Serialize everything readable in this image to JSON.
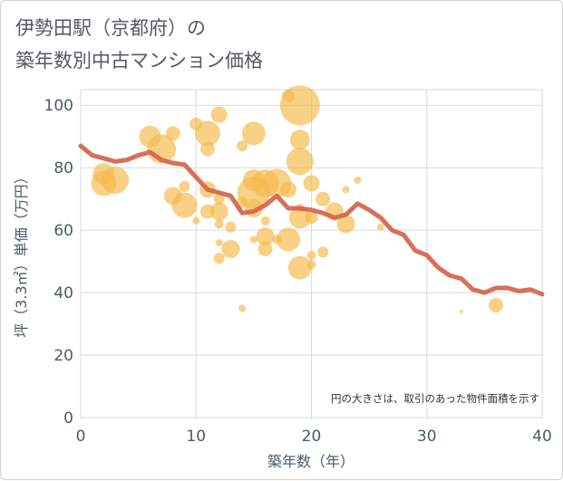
{
  "chart_data": {
    "type": "scatter",
    "title": "伊勢田駅（京都府）の\n築年数別中古マンション価格",
    "xlabel": "築年数（年）",
    "ylabel": "坪（3.3㎡）単価（万円）",
    "xlim": [
      0,
      40
    ],
    "ylim": [
      0,
      105
    ],
    "x_ticks": [
      0,
      10,
      20,
      30,
      40
    ],
    "y_ticks": [
      0,
      20,
      40,
      60,
      80,
      100
    ],
    "grid": true,
    "annotation": "円の大きさは、取引のあった物件面積を示す",
    "colors": {
      "bubble": "#f5b94d",
      "line": "#d4644a"
    },
    "series": [
      {
        "type": "bubble",
        "points": [
          {
            "x": 2,
            "y": 75,
            "size": 14
          },
          {
            "x": 2,
            "y": 78,
            "size": 12
          },
          {
            "x": 3,
            "y": 76,
            "size": 15
          },
          {
            "x": 6,
            "y": 90,
            "size": 12
          },
          {
            "x": 7,
            "y": 86,
            "size": 16
          },
          {
            "x": 8,
            "y": 91,
            "size": 8
          },
          {
            "x": 8,
            "y": 71,
            "size": 10
          },
          {
            "x": 9,
            "y": 68,
            "size": 14
          },
          {
            "x": 9,
            "y": 74,
            "size": 6
          },
          {
            "x": 10,
            "y": 94,
            "size": 7
          },
          {
            "x": 10,
            "y": 63,
            "size": 4
          },
          {
            "x": 11,
            "y": 91,
            "size": 14
          },
          {
            "x": 11,
            "y": 86,
            "size": 8
          },
          {
            "x": 11,
            "y": 73,
            "size": 9
          },
          {
            "x": 11,
            "y": 66,
            "size": 8
          },
          {
            "x": 12,
            "y": 97,
            "size": 9
          },
          {
            "x": 12,
            "y": 70,
            "size": 6
          },
          {
            "x": 12,
            "y": 66,
            "size": 10
          },
          {
            "x": 12,
            "y": 62,
            "size": 5
          },
          {
            "x": 12,
            "y": 56,
            "size": 4
          },
          {
            "x": 12,
            "y": 51,
            "size": 6
          },
          {
            "x": 13,
            "y": 61,
            "size": 6
          },
          {
            "x": 13,
            "y": 54,
            "size": 10
          },
          {
            "x": 14,
            "y": 87,
            "size": 6
          },
          {
            "x": 14,
            "y": 69,
            "size": 6
          },
          {
            "x": 14,
            "y": 35,
            "size": 4
          },
          {
            "x": 15,
            "y": 91,
            "size": 13
          },
          {
            "x": 15,
            "y": 76,
            "size": 12
          },
          {
            "x": 15,
            "y": 72,
            "size": 18
          },
          {
            "x": 15,
            "y": 67,
            "size": 10
          },
          {
            "x": 15,
            "y": 57,
            "size": 4
          },
          {
            "x": 16,
            "y": 75,
            "size": 15
          },
          {
            "x": 16,
            "y": 63,
            "size": 5
          },
          {
            "x": 16,
            "y": 58,
            "size": 10
          },
          {
            "x": 16,
            "y": 54,
            "size": 8
          },
          {
            "x": 17,
            "y": 75,
            "size": 16
          },
          {
            "x": 17,
            "y": 57,
            "size": 5
          },
          {
            "x": 18,
            "y": 103,
            "size": 7
          },
          {
            "x": 18,
            "y": 73,
            "size": 9
          },
          {
            "x": 18,
            "y": 57,
            "size": 13
          },
          {
            "x": 19,
            "y": 100,
            "size": 22
          },
          {
            "x": 19,
            "y": 89,
            "size": 11
          },
          {
            "x": 19,
            "y": 82,
            "size": 15
          },
          {
            "x": 19,
            "y": 67,
            "size": 5
          },
          {
            "x": 19,
            "y": 64,
            "size": 12
          },
          {
            "x": 19,
            "y": 48,
            "size": 13
          },
          {
            "x": 20,
            "y": 75,
            "size": 9
          },
          {
            "x": 20,
            "y": 64,
            "size": 7
          },
          {
            "x": 20,
            "y": 52,
            "size": 5
          },
          {
            "x": 20,
            "y": 49,
            "size": 5
          },
          {
            "x": 21,
            "y": 70,
            "size": 8
          },
          {
            "x": 21,
            "y": 53,
            "size": 6
          },
          {
            "x": 22,
            "y": 66,
            "size": 10
          },
          {
            "x": 23,
            "y": 73,
            "size": 4
          },
          {
            "x": 23,
            "y": 62,
            "size": 10
          },
          {
            "x": 24,
            "y": 76,
            "size": 4
          },
          {
            "x": 26,
            "y": 61,
            "size": 4
          },
          {
            "x": 33,
            "y": 34,
            "size": 2
          },
          {
            "x": 36,
            "y": 36,
            "size": 8
          }
        ]
      },
      {
        "type": "line",
        "x": [
          0,
          1,
          2,
          3,
          4,
          5,
          6,
          7,
          8,
          9,
          10,
          11,
          12,
          13,
          14,
          15,
          16,
          17,
          18,
          19,
          20,
          21,
          22,
          23,
          24,
          25,
          26,
          27,
          28,
          29,
          30,
          31,
          32,
          33,
          34,
          35,
          36,
          37,
          38,
          39,
          40
        ],
        "y": [
          87,
          84,
          83,
          82,
          82.5,
          84,
          85,
          82.5,
          81.5,
          81,
          77,
          73,
          72,
          71,
          65.5,
          66,
          68,
          71,
          67,
          67,
          66.5,
          65.5,
          64,
          65,
          68.5,
          66.5,
          64,
          60,
          58.5,
          53.5,
          52,
          48,
          45.5,
          44.5,
          41,
          40,
          41.5,
          41.5,
          40.5,
          41,
          39.5
        ]
      }
    ]
  }
}
